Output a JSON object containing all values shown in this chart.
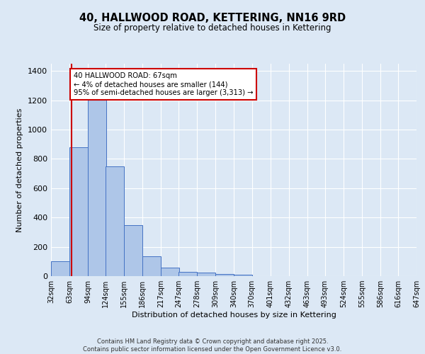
{
  "title": "40, HALLWOOD ROAD, KETTERING, NN16 9RD",
  "subtitle": "Size of property relative to detached houses in Kettering",
  "xlabel": "Distribution of detached houses by size in Kettering",
  "ylabel": "Number of detached properties",
  "bar_left_edges": [
    32,
    63,
    94,
    124,
    155,
    186,
    217,
    247,
    278,
    309,
    340,
    370,
    401,
    432,
    463,
    493,
    524,
    555,
    586,
    616
  ],
  "bar_heights": [
    100,
    880,
    1230,
    750,
    350,
    135,
    60,
    28,
    22,
    15,
    8,
    0,
    0,
    0,
    0,
    0,
    0,
    0,
    0,
    0
  ],
  "bin_width": 31,
  "tick_labels": [
    "32sqm",
    "63sqm",
    "94sqm",
    "124sqm",
    "155sqm",
    "186sqm",
    "217sqm",
    "247sqm",
    "278sqm",
    "309sqm",
    "340sqm",
    "370sqm",
    "401sqm",
    "432sqm",
    "463sqm",
    "493sqm",
    "524sqm",
    "555sqm",
    "586sqm",
    "616sqm",
    "647sqm"
  ],
  "tick_positions": [
    32,
    63,
    94,
    124,
    155,
    186,
    217,
    247,
    278,
    309,
    340,
    370,
    401,
    432,
    463,
    493,
    524,
    555,
    586,
    616,
    647
  ],
  "bar_color": "#aec6e8",
  "bar_edge_color": "#4472c4",
  "marker_x": 67,
  "marker_color": "#cc0000",
  "annotation_text": "40 HALLWOOD ROAD: 67sqm\n← 4% of detached houses are smaller (144)\n95% of semi-detached houses are larger (3,313) →",
  "annotation_box_color": "#ffffff",
  "annotation_box_edge_color": "#cc0000",
  "ylim": [
    0,
    1450
  ],
  "xlim": [
    32,
    647
  ],
  "yticks": [
    0,
    200,
    400,
    600,
    800,
    1000,
    1200,
    1400
  ],
  "background_color": "#dce8f5",
  "grid_color": "#ffffff",
  "footer_text": "Contains HM Land Registry data © Crown copyright and database right 2025.\nContains public sector information licensed under the Open Government Licence v3.0."
}
